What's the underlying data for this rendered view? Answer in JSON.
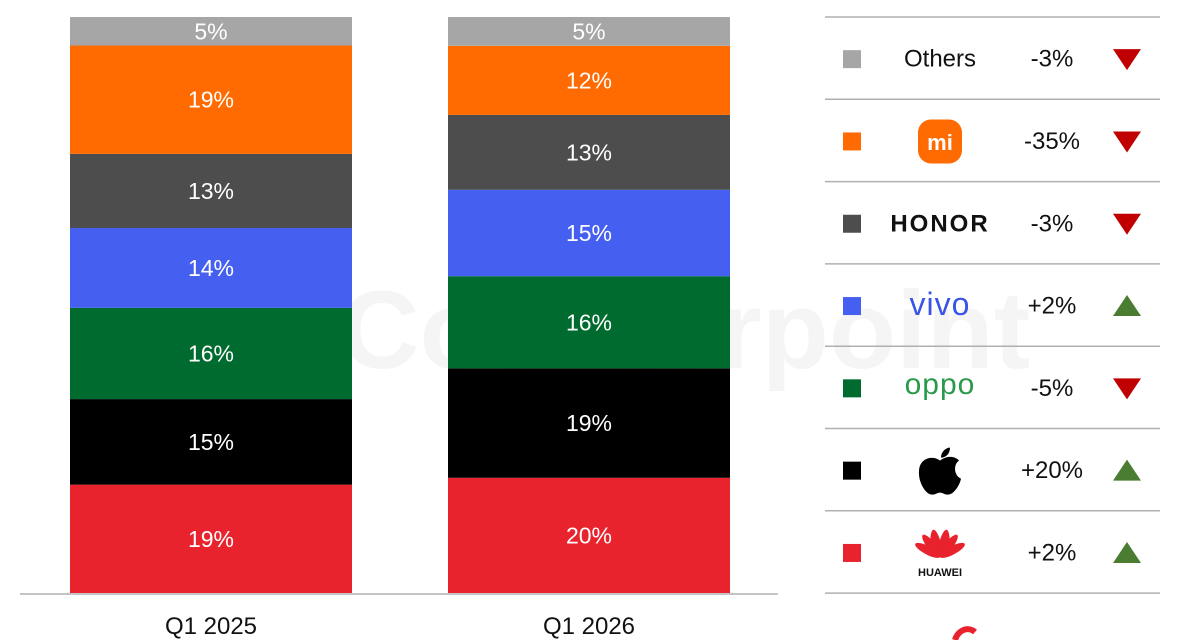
{
  "chart_data": {
    "type": "bar",
    "stacked": true,
    "percent_stacked": true,
    "categories": [
      "Q1 2025",
      "Q1 2026"
    ],
    "ylim": [
      0,
      100
    ],
    "grid": false,
    "legend_position": "right",
    "series": [
      {
        "key": "huawei",
        "color": "#e8232d",
        "values": [
          19,
          20
        ],
        "labels": [
          "19%",
          "20%"
        ]
      },
      {
        "key": "apple",
        "color": "#000000",
        "values": [
          15,
          19
        ],
        "labels": [
          "15%",
          "19%"
        ]
      },
      {
        "key": "oppo",
        "color": "#006b2e",
        "values": [
          16,
          16
        ],
        "labels": [
          "16%",
          "16%"
        ]
      },
      {
        "key": "vivo",
        "color": "#4560f0",
        "values": [
          14,
          15
        ],
        "labels": [
          "14%",
          "15%"
        ]
      },
      {
        "key": "honor",
        "color": "#4d4d4d",
        "values": [
          13,
          13
        ],
        "labels": [
          "13%",
          "13%"
        ]
      },
      {
        "key": "xiaomi",
        "color": "#ff6b00",
        "values": [
          19,
          12
        ],
        "labels": [
          "19%",
          "12%"
        ]
      },
      {
        "key": "others",
        "color": "#a6a6a6",
        "values": [
          5,
          5
        ],
        "labels": [
          "5%",
          "5%"
        ]
      }
    ]
  },
  "legend": {
    "rows": [
      {
        "key": "others",
        "square_color": "#a6a6a6",
        "name": "Others",
        "logo": "text",
        "change": "-3%",
        "direction": "down"
      },
      {
        "key": "xiaomi",
        "square_color": "#ff6b00",
        "name": "mi",
        "logo": "mi-logo",
        "change": "-35%",
        "direction": "down"
      },
      {
        "key": "honor",
        "square_color": "#4d4d4d",
        "name": "HONOR",
        "logo": "honor-logo",
        "change": "-3%",
        "direction": "down"
      },
      {
        "key": "vivo",
        "square_color": "#4560f0",
        "name": "vivo",
        "logo": "vivo-logo",
        "change": "+2%",
        "direction": "up"
      },
      {
        "key": "oppo",
        "square_color": "#006b2e",
        "name": "oppo",
        "logo": "oppo-logo",
        "change": "-5%",
        "direction": "down"
      },
      {
        "key": "apple",
        "square_color": "#000000",
        "name": "",
        "logo": "apple-logo",
        "change": "+20%",
        "direction": "up"
      },
      {
        "key": "huawei",
        "square_color": "#e8232d",
        "name": "HUAWEI",
        "logo": "huawei-logo",
        "change": "+2%",
        "direction": "up"
      }
    ],
    "down_color": "#c00000",
    "up_color": "#4a7d32"
  },
  "watermark": {
    "text": "Counterpoint"
  }
}
